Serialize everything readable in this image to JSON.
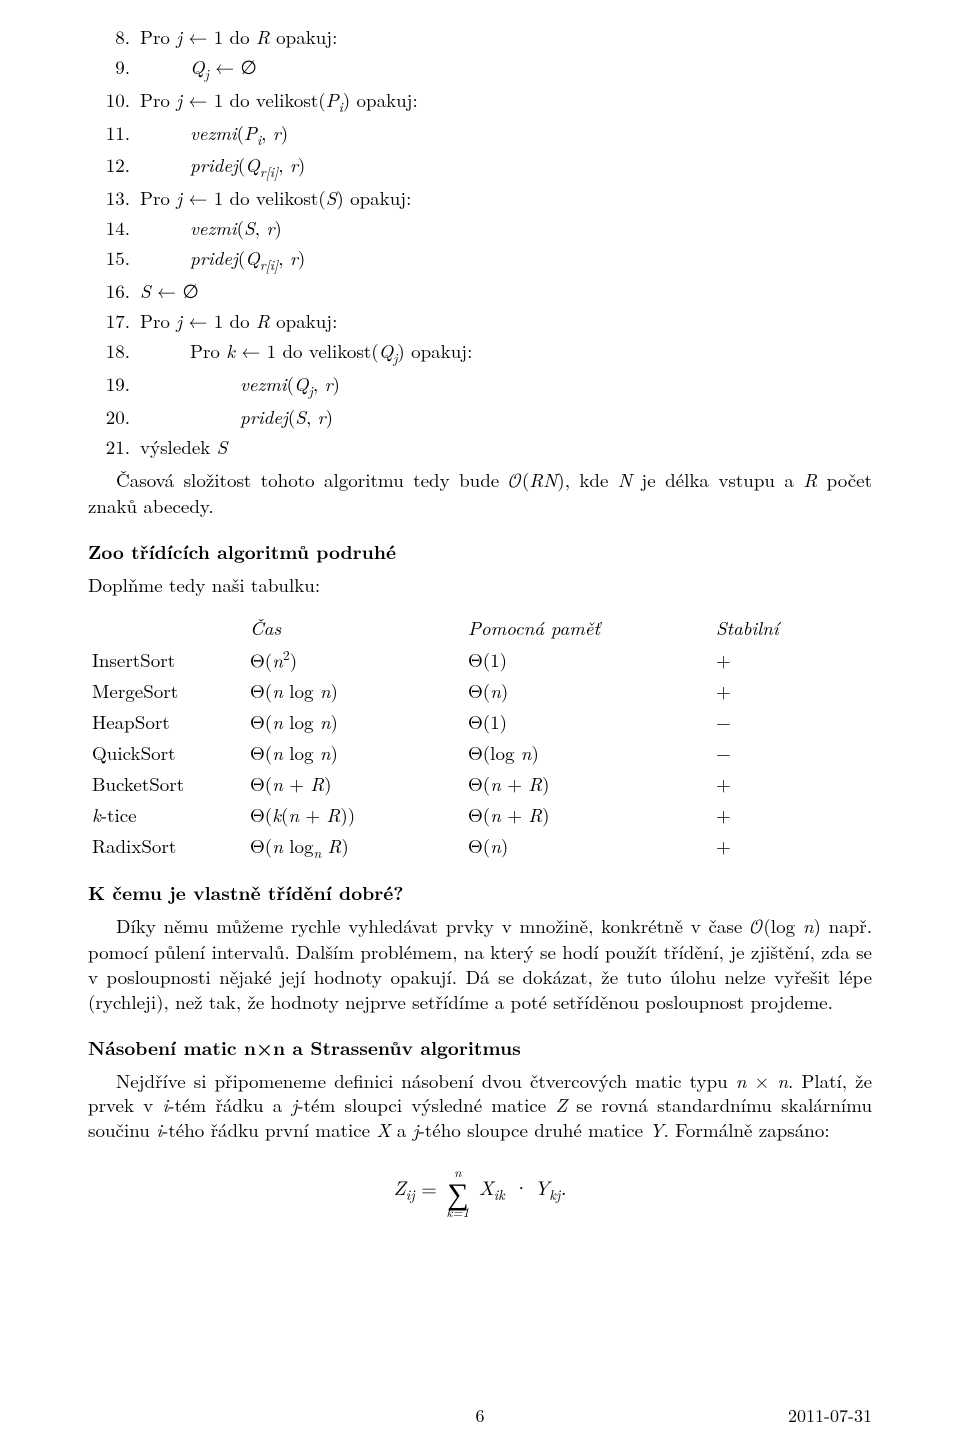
{
  "algo": {
    "lines": [
      {
        "n": "8.",
        "b": "Pro <i>j</i> ← 1 do <i>R</i> opakuj:",
        "ind": 0
      },
      {
        "n": "9.",
        "b": "<i>Q<sub>j</sub></i> ← ∅",
        "ind": 1
      },
      {
        "n": "10.",
        "b": "Pro <i>j</i> ← 1 do velikost(<i>P<sub>i</sub></i>) opakuj:",
        "ind": 0
      },
      {
        "n": "11.",
        "b": "<i>vezmi</i>(<i>P<sub>i</sub></i>, <i>r</i>)",
        "ind": 1
      },
      {
        "n": "12.",
        "b": "<i>pridej</i>(<i>Q<sub>r[i]</sub></i>, <i>r</i>)",
        "ind": 1
      },
      {
        "n": "13.",
        "b": "Pro <i>j</i> ← 1 do velikost(<i>S</i>) opakuj:",
        "ind": 0
      },
      {
        "n": "14.",
        "b": "<i>vezmi</i>(<i>S</i>, <i>r</i>)",
        "ind": 1
      },
      {
        "n": "15.",
        "b": "<i>pridej</i>(<i>Q<sub>r[i]</sub></i>, <i>r</i>)",
        "ind": 1
      },
      {
        "n": "16.",
        "b": "<i>S</i> ← ∅",
        "ind": 0
      },
      {
        "n": "17.",
        "b": "Pro <i>j</i> ← 1 do <i>R</i> opakuj:",
        "ind": 0
      },
      {
        "n": "18.",
        "b": "Pro <i>k</i> ← 1 do velikost(<i>Q<sub>j</sub></i>) opakuj:",
        "ind": 1
      },
      {
        "n": "19.",
        "b": "<i>vezmi</i>(<i>Q<sub>j</sub></i>, <i>r</i>)",
        "ind": 2
      },
      {
        "n": "20.",
        "b": "<i>pridej</i>(<i>S</i>, <i>r</i>)",
        "ind": 2
      },
      {
        "n": "21.",
        "b": "výsledek <i>S</i>",
        "ind": 0
      }
    ]
  },
  "complexity_para": "Časová složitost tohoto algoritmu tedy bude <span style=\"font-family:'Latin Modern Math',serif\">𝒪</span>(<i>RN</i>), kde <i>N</i> je délka vstupu a <i>R</i> počet znaků abecedy.",
  "section_zoo_title": "Zoo třídících algoritmů podruhé",
  "zoo_line": "Doplňme tedy naši tabulku:",
  "table": {
    "headers": [
      "Čas",
      "Pomocná paměť",
      "Stabilní"
    ],
    "rows": [
      [
        "InsertSort",
        "Θ(<i>n</i><sup>2</sup>)",
        "Θ(1)",
        "+"
      ],
      [
        "MergeSort",
        "Θ(<i>n</i> log <i>n</i>)",
        "Θ(<i>n</i>)",
        "+"
      ],
      [
        "HeapSort",
        "Θ(<i>n</i> log <i>n</i>)",
        "Θ(1)",
        "−"
      ],
      [
        "QuickSort",
        "Θ(<i>n</i> log <i>n</i>)",
        "Θ(log <i>n</i>)",
        "−"
      ],
      [
        "BucketSort",
        "Θ(<i>n</i> + <i>R</i>)",
        "Θ(<i>n</i> + <i>R</i>)",
        "+"
      ],
      [
        "<i>k</i>-tice",
        "Θ(<i>k</i>(<i>n</i> + <i>R</i>))",
        "Θ(<i>n</i> + <i>R</i>)",
        "+"
      ],
      [
        "RadixSort",
        "Θ(<i>n</i> log<sub><i>n</i></sub> <i>R</i>)",
        "Θ(<i>n</i>)",
        "+"
      ]
    ]
  },
  "section_kcemu_title": "K čemu je vlastně třídění dobré?",
  "kcemu_para": "Díky němu můžeme rychle vyhledávat prvky v množině, konkrétně v čase <span style=\"font-family:'Latin Modern Math',serif\">𝒪</span>(log <i>n</i>) např. pomocí půlení intervalů. Dalším problémem, na který se hodí použít třídění, je zjištění, zda se v posloupnosti nějaké její hodnoty opakují. Dá se dokázat, že tuto úlohu nelze vyřešit lépe (rychleji), než tak, že hodnoty nejprve setřídíme a poté setříděnou posloupnost projdeme.",
  "section_matmul_title": "Násobení matic n×n a Strassenův algoritmus",
  "matmul_para": "Nejdříve si připomeneme definici násobení dvou čtvercových matic typu <i>n</i> × <i>n</i>. Platí, že prvek v <i>i</i>-tém řádku a <i>j</i>-tém sloupci výsledné matice <i>Z</i> se rovná standardnímu skalárnímu součinu <i>i</i>-tého řádku první matice <i>X</i> a <i>j</i>-tého sloupce druhé matice <i>Y</i>. Formálně zapsáno:",
  "formula": {
    "lhs": "Z<sub>ij</sub>",
    "upper": "n",
    "lower": "k=1",
    "rhs": "X<sub>ik</sub> · Y<sub>kj</sub>."
  },
  "footer": {
    "page": "6",
    "date": "2011-07-31"
  }
}
